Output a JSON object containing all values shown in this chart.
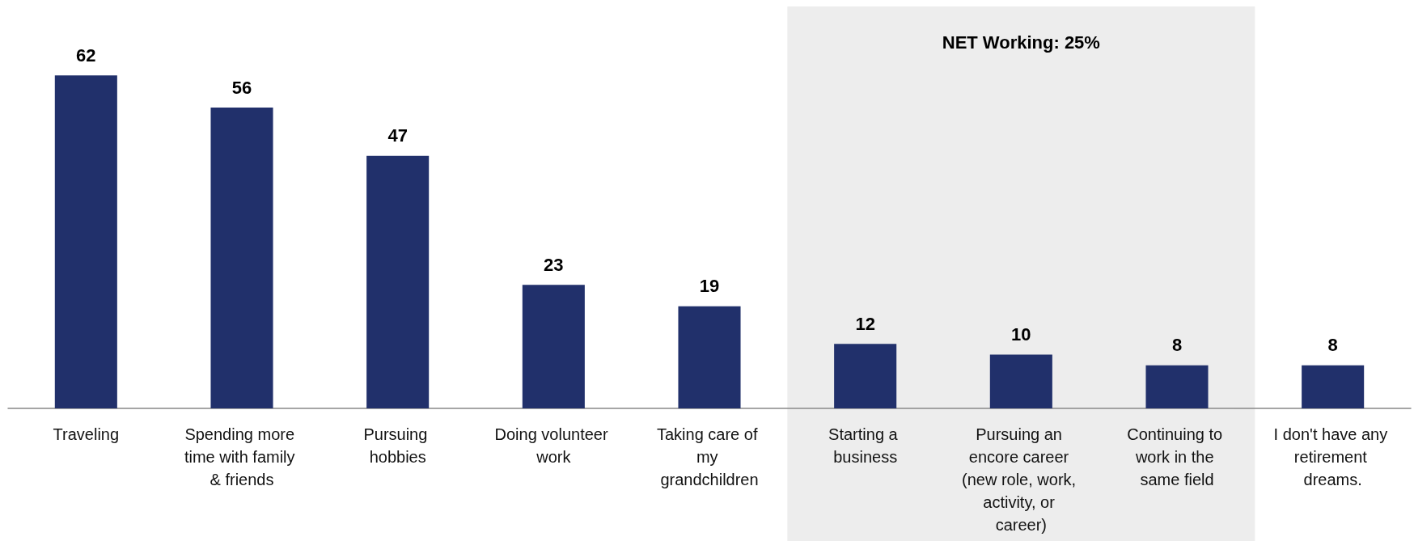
{
  "chart_data": {
    "type": "bar",
    "categories": [
      "Traveling",
      "Spending more time with family & friends",
      "Pursuing hobbies",
      "Doing volunteer work",
      "Taking care of my grandchildren",
      "Starting a business",
      "Pursuing an encore career (new role, work, activity, or career)",
      "Continuing to work in the same field",
      "I don't have any retirement dreams."
    ],
    "values": [
      62,
      56,
      47,
      23,
      19,
      12,
      10,
      8,
      8
    ],
    "color": "#21306b",
    "data_labels": true,
    "grid": false,
    "tick_labels": "x",
    "bands": [
      {
        "axis": "x",
        "from": "Starting a business",
        "to": "Continuing to work in the same field",
        "label": "NET Working: 25%",
        "color": "#ededed"
      }
    ]
  }
}
